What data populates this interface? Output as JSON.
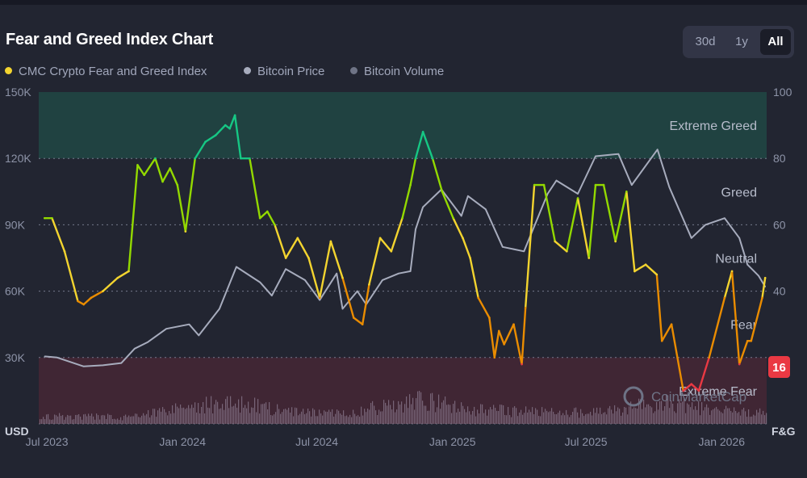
{
  "header": {
    "title": "Fear and Greed Index Chart",
    "ranges": [
      {
        "label": "30d",
        "active": false
      },
      {
        "label": "1y",
        "active": false
      },
      {
        "label": "All",
        "active": true
      }
    ]
  },
  "legend": [
    {
      "label": "CMC Crypto Fear and Greed Index",
      "color": "#f3d42f"
    },
    {
      "label": "Bitcoin Price",
      "color": "#a7acbd"
    },
    {
      "label": "Bitcoin Volume",
      "color": "#6f7486"
    }
  ],
  "watermark": "CoinMarketCap",
  "chart_data": {
    "type": "line",
    "x_axis": {
      "ticks": [
        "Jul 2023",
        "Jan 2024",
        "Jul 2024",
        "Jan 2025",
        "Jul 2025",
        "Jan 2026"
      ]
    },
    "y_left": {
      "unit": "USD",
      "ticks": [
        "30K",
        "60K",
        "90K",
        "120K",
        "150K"
      ],
      "range": [
        0,
        150000
      ]
    },
    "y_right": {
      "unit": "F&G",
      "ticks": [
        "40",
        "60",
        "80",
        "100"
      ],
      "range": [
        0,
        100
      ]
    },
    "zones": [
      {
        "label": "Extreme Greed",
        "from": 80,
        "to": 100,
        "color": "#1f5b4f"
      },
      {
        "label": "Greed",
        "from": 60,
        "to": 80
      },
      {
        "label": "Neutral",
        "from": 40,
        "to": 60
      },
      {
        "label": "Fear",
        "from": 20,
        "to": 40
      },
      {
        "label": "Extreme Fear",
        "from": 0,
        "to": 20,
        "color": "#5a2836"
      }
    ],
    "current_value": "16",
    "current_color": "#ea3943",
    "grid": true,
    "series": [
      {
        "name": "CMC Crypto Fear and Greed Index",
        "axis": "right",
        "x": [
          "2023-06-28",
          "2023-07-08",
          "2023-07-25",
          "2023-08-12",
          "2023-08-20",
          "2023-08-30",
          "2023-09-15",
          "2023-10-05",
          "2023-10-20",
          "2023-11-01",
          "2023-11-10",
          "2023-11-25",
          "2023-12-05",
          "2023-12-15",
          "2023-12-25",
          "2024-01-05",
          "2024-01-18",
          "2024-02-01",
          "2024-02-15",
          "2024-02-28",
          "2024-03-05",
          "2024-03-12",
          "2024-03-20",
          "2024-04-01",
          "2024-04-15",
          "2024-04-25",
          "2024-05-05",
          "2024-05-20",
          "2024-06-05",
          "2024-06-20",
          "2024-07-05",
          "2024-07-20",
          "2024-08-05",
          "2024-08-20",
          "2024-09-01",
          "2024-09-10",
          "2024-09-25",
          "2024-10-10",
          "2024-10-25",
          "2024-11-05",
          "2024-11-12",
          "2024-11-22",
          "2024-12-05",
          "2024-12-18",
          "2025-01-02",
          "2025-01-15",
          "2025-01-25",
          "2025-02-05",
          "2025-02-20",
          "2025-02-27",
          "2025-03-05",
          "2025-03-12",
          "2025-03-25",
          "2025-04-05",
          "2025-04-10",
          "2025-04-22",
          "2025-05-05",
          "2025-05-20",
          "2025-06-05",
          "2025-06-20",
          "2025-07-05",
          "2025-07-14",
          "2025-07-25",
          "2025-08-10",
          "2025-08-25",
          "2025-09-05",
          "2025-09-20",
          "2025-10-05",
          "2025-10-12",
          "2025-10-25",
          "2025-11-10",
          "2025-11-21",
          "2025-12-01",
          "2025-12-15",
          "2026-01-05",
          "2026-01-15",
          "2026-01-25",
          "2026-02-05",
          "2026-02-10",
          "2026-02-25",
          "2026-03-01"
        ],
        "values": [
          62,
          62,
          52,
          37,
          36,
          38,
          40,
          44,
          46,
          78,
          75,
          80,
          73,
          77,
          72,
          58,
          80,
          85,
          87,
          90,
          89,
          93,
          80,
          80,
          62,
          64,
          60,
          50,
          56,
          50,
          38,
          55,
          44,
          32,
          30,
          42,
          56,
          52,
          62,
          72,
          80,
          88,
          80,
          70,
          62,
          56,
          50,
          38,
          32,
          20,
          28,
          24,
          30,
          18,
          35,
          72,
          72,
          55,
          52,
          68,
          50,
          72,
          72,
          55,
          70,
          46,
          48,
          45,
          25,
          30,
          10,
          12,
          10,
          20,
          38,
          46,
          18,
          25,
          25,
          38,
          44
        ],
        "colors": {
          "extreme_greed": "#16c784",
          "greed": "#93d900",
          "neutral": "#f3d42f",
          "fear": "#ea8c00",
          "extreme_fear": "#ea3943"
        }
      },
      {
        "name": "Bitcoin Price",
        "axis": "left",
        "color": "#a7acbd",
        "x": [
          "2023-06-28",
          "2023-07-15",
          "2023-08-20",
          "2023-09-15",
          "2023-10-10",
          "2023-10-28",
          "2023-11-15",
          "2023-12-10",
          "2024-01-10",
          "2024-01-23",
          "2024-02-20",
          "2024-03-14",
          "2024-04-15",
          "2024-05-01",
          "2024-05-20",
          "2024-06-15",
          "2024-07-05",
          "2024-07-28",
          "2024-08-05",
          "2024-08-25",
          "2024-09-06",
          "2024-09-28",
          "2024-10-20",
          "2024-11-05",
          "2024-11-12",
          "2024-11-22",
          "2024-12-17",
          "2025-01-13",
          "2025-01-22",
          "2025-02-15",
          "2025-03-10",
          "2025-04-08",
          "2025-05-10",
          "2025-05-22",
          "2025-06-20",
          "2025-07-14",
          "2025-08-14",
          "2025-09-01",
          "2025-10-06",
          "2025-10-22",
          "2025-11-21",
          "2025-12-10",
          "2026-01-05",
          "2026-01-25",
          "2026-02-05",
          "2026-02-20",
          "2026-03-01"
        ],
        "values": [
          30500,
          30000,
          26000,
          26500,
          27500,
          34000,
          37000,
          43000,
          45000,
          40000,
          52000,
          71000,
          64000,
          58000,
          70000,
          65000,
          56000,
          68000,
          52000,
          60000,
          54000,
          65000,
          68000,
          69000,
          88000,
          98000,
          106000,
          94000,
          103000,
          97000,
          80000,
          78000,
          104000,
          110000,
          104000,
          121000,
          122000,
          108000,
          124000,
          107000,
          84000,
          90000,
          93000,
          84000,
          72000,
          67000,
          62000
        ]
      },
      {
        "name": "Bitcoin Volume",
        "axis": "left",
        "color": "#8a7a8e",
        "x": [
          "2023-07",
          "2023-10",
          "2024-01",
          "2024-03",
          "2024-06",
          "2024-08",
          "2024-11",
          "2025-01",
          "2025-04",
          "2025-07",
          "2025-10",
          "2025-12",
          "2026-02"
        ],
        "values": [
          5000,
          4500,
          12000,
          14000,
          7000,
          8000,
          16000,
          10000,
          8000,
          7500,
          14000,
          9000,
          7000
        ]
      }
    ]
  }
}
